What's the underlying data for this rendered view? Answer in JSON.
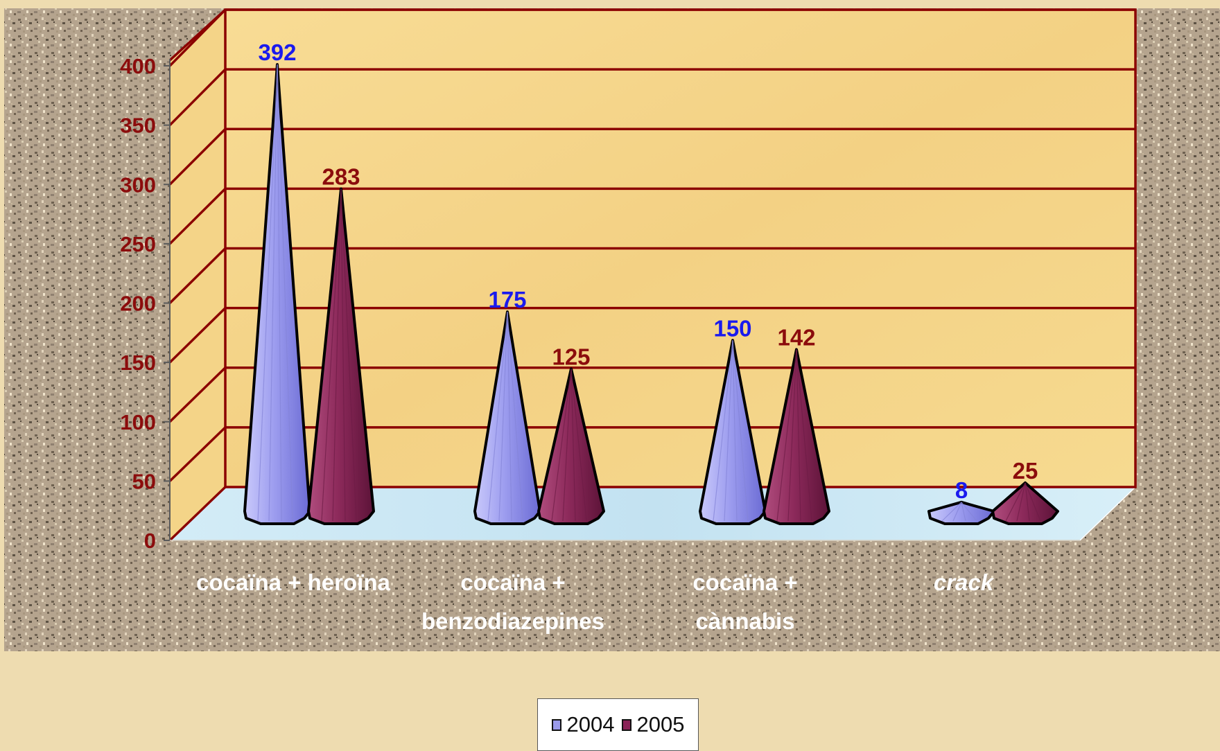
{
  "colors": {
    "series_2004": "#9a9aea",
    "series_2005": "#8a2357",
    "label_2004": "#1a1aee",
    "label_2005": "#8b0c0c",
    "axis_and_grid": "#8b0000",
    "tick_label": "#8b0c0c",
    "category_label": "#ffffff",
    "back_wall": "#f6d78a",
    "floor": "#cde8f4",
    "border": "#5a5a5a"
  },
  "chart_data": {
    "type": "bar",
    "style": "3d-cone",
    "categories": [
      "cocaïna + heroïna",
      "cocaïna + benzodiazepines",
      "cocaïna + cànnabis",
      "crack"
    ],
    "category_lines": [
      [
        "cocaïna + heroïna"
      ],
      [
        "cocaïna +",
        "benzodiazepines"
      ],
      [
        "cocaïna +",
        "cànnabis"
      ],
      [
        "crack"
      ]
    ],
    "category_italic": [
      false,
      false,
      false,
      true
    ],
    "series": [
      {
        "name": "2004",
        "values": [
          392,
          175,
          150,
          8
        ]
      },
      {
        "name": "2005",
        "values": [
          283,
          125,
          142,
          25
        ]
      }
    ],
    "data_labels": [
      [
        "392",
        "175",
        "150",
        "8"
      ],
      [
        "283",
        "125",
        "142",
        "25"
      ]
    ],
    "ylim": [
      0,
      400
    ],
    "yticks": [
      "0",
      "50",
      "100",
      "150",
      "200",
      "250",
      "300",
      "350",
      "400"
    ],
    "grid": true,
    "legend": "bottom-center",
    "title": "",
    "xlabel": "",
    "ylabel": ""
  }
}
